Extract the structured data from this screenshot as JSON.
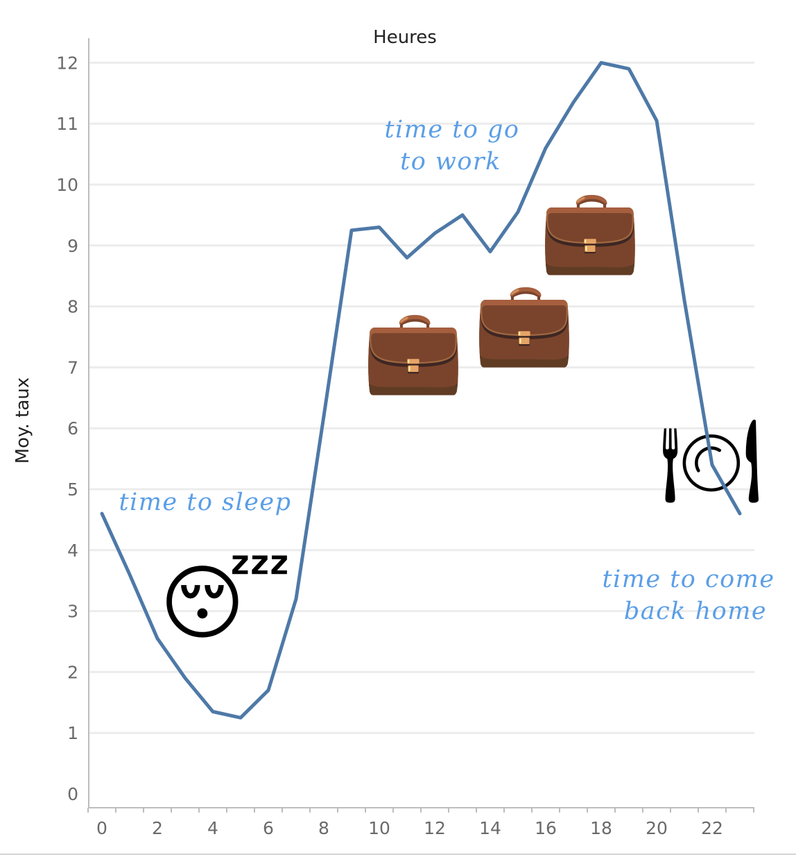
{
  "chart_data": {
    "type": "line",
    "title": "Heures",
    "xlabel": "Heures",
    "ylabel": "Moy. taux",
    "x": [
      0,
      1,
      2,
      3,
      4,
      5,
      6,
      7,
      8,
      9,
      10,
      11,
      12,
      13,
      14,
      15,
      16,
      17,
      18,
      19,
      20,
      21,
      22,
      23
    ],
    "values": [
      4.6,
      3.6,
      2.55,
      1.9,
      1.35,
      1.25,
      1.7,
      3.2,
      6.2,
      9.25,
      9.3,
      8.8,
      9.2,
      9.5,
      8.9,
      9.55,
      10.6,
      11.35,
      12.0,
      11.9,
      11.05,
      8.1,
      5.4,
      4.6
    ],
    "xlim": [
      -0.5,
      23.5
    ],
    "ylim": [
      0,
      12.5
    ],
    "x_ticks": [
      0,
      2,
      4,
      6,
      8,
      10,
      12,
      14,
      16,
      18,
      20,
      22
    ],
    "y_ticks": [
      0,
      1,
      2,
      3,
      4,
      5,
      6,
      7,
      8,
      9,
      10,
      11,
      12
    ],
    "grid": true,
    "line_color": "#4e79a7",
    "annotations": [
      {
        "id": "sleep",
        "lines": [
          "time to sleep"
        ]
      },
      {
        "id": "work",
        "lines": [
          "time to go",
          "to work"
        ]
      },
      {
        "id": "home",
        "lines": [
          "time to come",
          "back home"
        ]
      }
    ],
    "icons": [
      "sleeping-face-icon",
      "briefcase-icon",
      "briefcase-icon",
      "briefcase-icon",
      "fork-knife-plate-icon"
    ],
    "annotation_color": "#5b9ee6"
  }
}
